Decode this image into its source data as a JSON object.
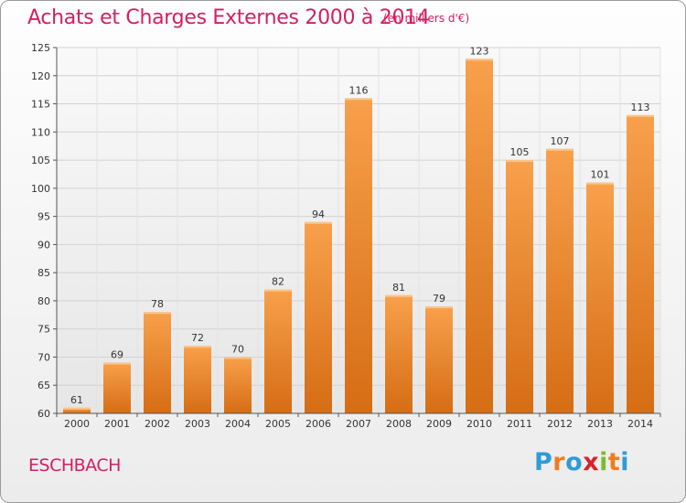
{
  "header": {
    "title": "Achats et Charges Externes 2000 à 2014",
    "subtitle": "(en milliers d'€)"
  },
  "footer": {
    "place": "ESCHBACH",
    "logo": {
      "letters": [
        "P",
        "r",
        "o",
        "x",
        "i",
        "t",
        "i"
      ],
      "colors": [
        "#2f9bd7",
        "#f07c1e",
        "#2f9bd7",
        "#d8222a",
        "#7dbb34",
        "#f07c1e",
        "#2f9bd7"
      ]
    }
  },
  "colors": {
    "bar_top": "#f8a04c",
    "bar_bottom": "#d56d14",
    "accent": "#d21f62"
  },
  "chart_data": {
    "type": "bar",
    "categories": [
      "2000",
      "2001",
      "2002",
      "2003",
      "2004",
      "2005",
      "2006",
      "2007",
      "2008",
      "2009",
      "2010",
      "2011",
      "2012",
      "2013",
      "2014"
    ],
    "values": [
      61,
      69,
      78,
      72,
      70,
      82,
      94,
      116,
      81,
      79,
      123,
      105,
      107,
      101,
      113
    ],
    "ylim": [
      60,
      125
    ],
    "yticks": [
      60,
      65,
      70,
      75,
      80,
      85,
      90,
      95,
      100,
      105,
      110,
      115,
      120,
      125
    ],
    "grid": true
  }
}
